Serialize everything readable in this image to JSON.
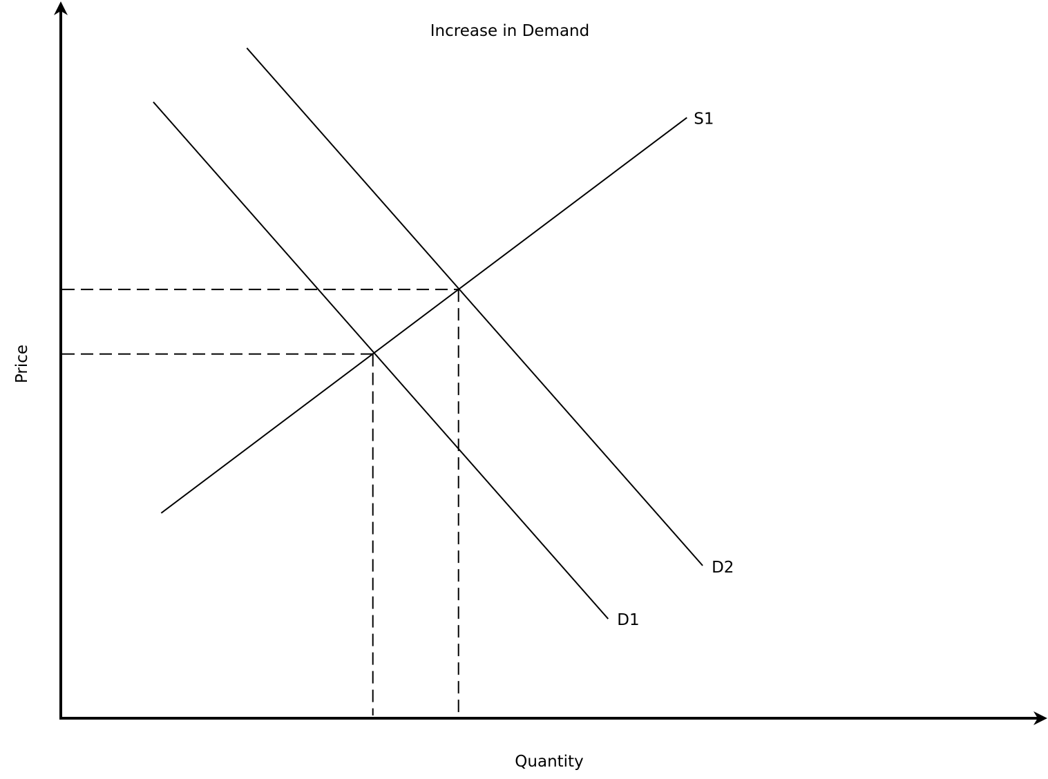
{
  "chart_data": {
    "type": "line",
    "title": "Increase in Demand",
    "xlabel": "Quantity",
    "ylabel": "Price",
    "xlim": [
      0,
      100
    ],
    "ylim": [
      0,
      100
    ],
    "grid": false,
    "axis_ticks": false,
    "series": [
      {
        "name": "S1",
        "style": "solid",
        "points": [
          [
            10.2,
            28.9
          ],
          [
            63.6,
            84.6
          ]
        ]
      },
      {
        "name": "D1",
        "style": "solid",
        "points": [
          [
            9.4,
            86.8
          ],
          [
            55.6,
            14.0
          ]
        ]
      },
      {
        "name": "D2",
        "style": "solid",
        "points": [
          [
            18.9,
            94.4
          ],
          [
            65.2,
            21.5
          ]
        ]
      }
    ],
    "equilibria": [
      {
        "of": [
          "S1",
          "D1"
        ],
        "x": 31.7,
        "y": 51.3
      },
      {
        "of": [
          "S1",
          "D2"
        ],
        "x": 40.4,
        "y": 60.4
      }
    ],
    "reference_lines": {
      "style": "dashed",
      "note": "from each equilibrium point to both axes"
    },
    "colors": {
      "axes": "#000000",
      "lines": "#000000",
      "background": "#ffffff"
    }
  }
}
